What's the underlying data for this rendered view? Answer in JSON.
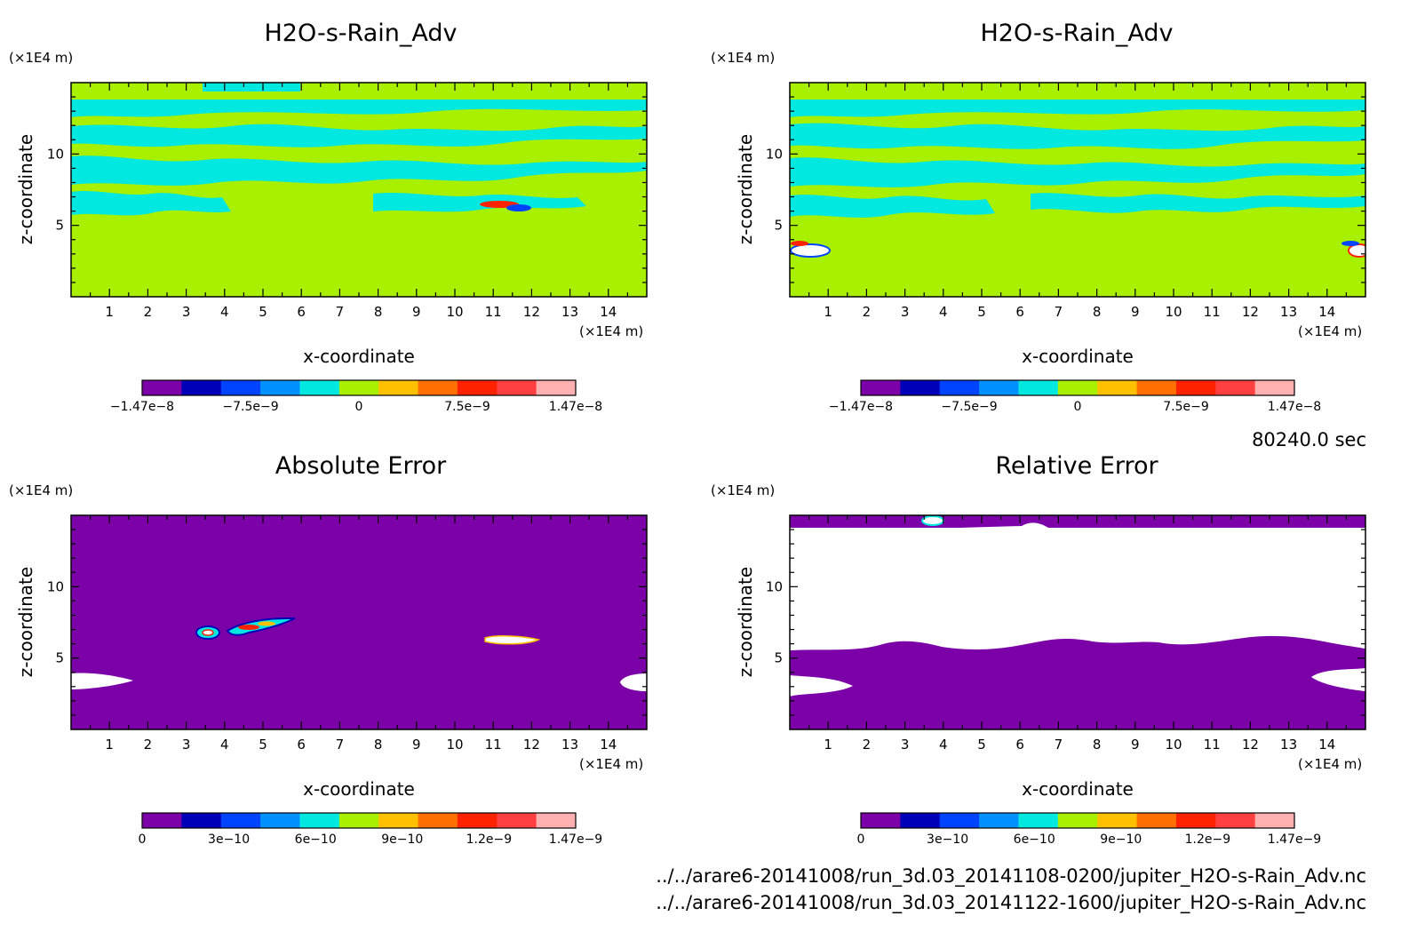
{
  "page": {
    "time_label": "80240.0 sec",
    "footer_lines": [
      "../../arare6-20141008/run_3d.03_20141108-0200/jupiter_H2O-s-Rain_Adv.nc",
      "../../arare6-20141008/run_3d.03_20141122-1600/jupiter_H2O-s-Rain_Adv.nc"
    ]
  },
  "colors": {
    "magnitude_scale": [
      "#7b00a8",
      "#0000b8",
      "#0044ff",
      "#0090ff",
      "#00e8e0",
      "#a8f000",
      "#ffc000",
      "#ff7000",
      "#ff2200",
      "#ff4040",
      "#ffb0b0"
    ],
    "signed_scale": [
      "#7b00a8",
      "#0000b8",
      "#0044ff",
      "#0090ff",
      "#00e8e0",
      "#a8f000",
      "#ffc000",
      "#ff7000",
      "#ff2200",
      "#ff4040",
      "#ffb0b0"
    ],
    "field_background": "#a8f000",
    "field_secondary": "#00e8e0",
    "error_background": "#7b00a8"
  },
  "chart_data": [
    {
      "type": "heatmap",
      "title": "H2O-s-Rain_Adv",
      "xlabel": "x-coordinate",
      "ylabel": "z-coordinate",
      "x_unit": "(×1E4 m)",
      "y_unit": "(×1E4 m)",
      "xlim": [
        0,
        15
      ],
      "ylim": [
        0,
        15
      ],
      "x_ticks": [
        "1",
        "2",
        "3",
        "4",
        "5",
        "6",
        "7",
        "8",
        "9",
        "10",
        "11",
        "12",
        "13",
        "14"
      ],
      "y_ticks": [
        "5",
        "10"
      ],
      "colorbar_ticks": [
        "−1.47e−8",
        "−7.5e−9",
        "0",
        "7.5e−9",
        "1.47e−8"
      ],
      "value_range": [
        -1.47e-08,
        1.47e-08
      ]
    },
    {
      "type": "heatmap",
      "title": "H2O-s-Rain_Adv",
      "xlabel": "x-coordinate",
      "ylabel": "z-coordinate",
      "x_unit": "(×1E4 m)",
      "y_unit": "(×1E4 m)",
      "xlim": [
        0,
        15
      ],
      "ylim": [
        0,
        15
      ],
      "x_ticks": [
        "1",
        "2",
        "3",
        "4",
        "5",
        "6",
        "7",
        "8",
        "9",
        "10",
        "11",
        "12",
        "13",
        "14"
      ],
      "y_ticks": [
        "5",
        "10"
      ],
      "colorbar_ticks": [
        "−1.47e−8",
        "−7.5e−9",
        "0",
        "7.5e−9",
        "1.47e−8"
      ],
      "value_range": [
        -1.47e-08,
        1.47e-08
      ]
    },
    {
      "type": "heatmap",
      "title": "Absolute Error",
      "xlabel": "x-coordinate",
      "ylabel": "z-coordinate",
      "x_unit": "(×1E4 m)",
      "y_unit": "(×1E4 m)",
      "xlim": [
        0,
        15
      ],
      "ylim": [
        0,
        15
      ],
      "x_ticks": [
        "1",
        "2",
        "3",
        "4",
        "5",
        "6",
        "7",
        "8",
        "9",
        "10",
        "11",
        "12",
        "13",
        "14"
      ],
      "y_ticks": [
        "5",
        "10"
      ],
      "colorbar_ticks": [
        "0",
        "3e−10",
        "6e−10",
        "9e−10",
        "1.2e−9",
        "1.47e−9"
      ],
      "value_range": [
        0,
        1.47e-09
      ]
    },
    {
      "type": "heatmap",
      "title": "Relative Error",
      "xlabel": "x-coordinate",
      "ylabel": "z-coordinate",
      "x_unit": "(×1E4 m)",
      "y_unit": "(×1E4 m)",
      "xlim": [
        0,
        15
      ],
      "ylim": [
        0,
        15
      ],
      "x_ticks": [
        "1",
        "2",
        "3",
        "4",
        "5",
        "6",
        "7",
        "8",
        "9",
        "10",
        "11",
        "12",
        "13",
        "14"
      ],
      "y_ticks": [
        "5",
        "10"
      ],
      "colorbar_ticks": [
        "0",
        "3e−10",
        "6e−10",
        "9e−10",
        "1.2e−9",
        "1.47e−9"
      ],
      "value_range": [
        0,
        1.47e-09
      ]
    }
  ]
}
